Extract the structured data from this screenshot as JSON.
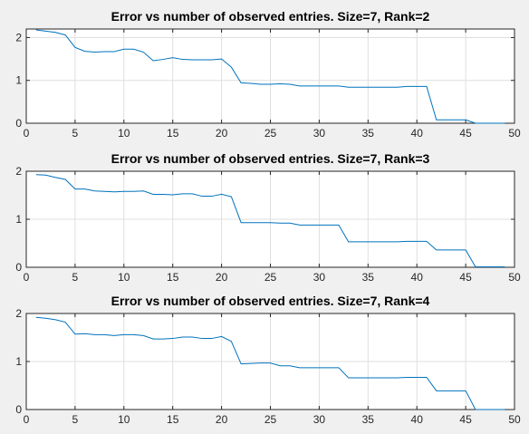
{
  "chart_data": [
    {
      "type": "line",
      "title": "Error vs number of observed entries. Size=7,  Rank=2",
      "xlabel": "",
      "ylabel": "",
      "xlim": [
        0,
        50
      ],
      "ylim": [
        0,
        2.2
      ],
      "xticks": [
        0,
        5,
        10,
        15,
        20,
        25,
        30,
        35,
        40,
        45,
        50
      ],
      "yticks": [
        0,
        1,
        2
      ],
      "grid": true,
      "color": "#0072bd",
      "series": [
        {
          "x": [
            1,
            2,
            3,
            4,
            5,
            6,
            7,
            8,
            9,
            10,
            11,
            12,
            13,
            14,
            15,
            16,
            17,
            18,
            19,
            20,
            21,
            22,
            23,
            24,
            25,
            26,
            27,
            28,
            29,
            30,
            31,
            32,
            33,
            34,
            35,
            36,
            37,
            38,
            39,
            40,
            41,
            42,
            43,
            44,
            45,
            46,
            47,
            48,
            49
          ],
          "y": [
            2.18,
            2.15,
            2.12,
            2.06,
            1.77,
            1.68,
            1.66,
            1.67,
            1.67,
            1.73,
            1.73,
            1.66,
            1.46,
            1.49,
            1.53,
            1.49,
            1.48,
            1.48,
            1.48,
            1.5,
            1.31,
            0.94,
            0.93,
            0.91,
            0.91,
            0.92,
            0.91,
            0.87,
            0.87,
            0.87,
            0.87,
            0.87,
            0.84,
            0.84,
            0.84,
            0.84,
            0.84,
            0.84,
            0.86,
            0.86,
            0.86,
            0.08,
            0.08,
            0.08,
            0.08,
            0.0,
            0.0,
            0.0,
            0.0
          ]
        }
      ]
    },
    {
      "type": "line",
      "title": "Error vs number of observed entries. Size=7,  Rank=3",
      "xlabel": "",
      "ylabel": "",
      "xlim": [
        0,
        50
      ],
      "ylim": [
        0,
        2
      ],
      "xticks": [
        0,
        5,
        10,
        15,
        20,
        25,
        30,
        35,
        40,
        45,
        50
      ],
      "yticks": [
        0,
        1,
        2
      ],
      "grid": true,
      "color": "#0072bd",
      "series": [
        {
          "x": [
            1,
            2,
            3,
            4,
            5,
            6,
            7,
            8,
            9,
            10,
            11,
            12,
            13,
            14,
            15,
            16,
            17,
            18,
            19,
            20,
            21,
            22,
            23,
            24,
            25,
            26,
            27,
            28,
            29,
            30,
            31,
            32,
            33,
            34,
            35,
            36,
            37,
            38,
            39,
            40,
            41,
            42,
            43,
            44,
            45,
            46,
            47,
            48,
            49
          ],
          "y": [
            1.93,
            1.92,
            1.87,
            1.83,
            1.63,
            1.63,
            1.59,
            1.58,
            1.57,
            1.58,
            1.58,
            1.59,
            1.52,
            1.52,
            1.51,
            1.53,
            1.53,
            1.48,
            1.48,
            1.52,
            1.47,
            0.93,
            0.93,
            0.93,
            0.93,
            0.92,
            0.92,
            0.88,
            0.88,
            0.88,
            0.88,
            0.88,
            0.53,
            0.53,
            0.53,
            0.53,
            0.53,
            0.53,
            0.54,
            0.54,
            0.54,
            0.36,
            0.36,
            0.36,
            0.36,
            0.01,
            0.01,
            0.01,
            0.01
          ]
        }
      ]
    },
    {
      "type": "line",
      "title": "Error vs number of observed entries. Size=7,  Rank=4",
      "xlabel": "",
      "ylabel": "",
      "xlim": [
        0,
        50
      ],
      "ylim": [
        0,
        2
      ],
      "xticks": [
        0,
        5,
        10,
        15,
        20,
        25,
        30,
        35,
        40,
        45,
        50
      ],
      "yticks": [
        0,
        1,
        2
      ],
      "grid": true,
      "color": "#0072bd",
      "series": [
        {
          "x": [
            1,
            2,
            3,
            4,
            5,
            6,
            7,
            8,
            9,
            10,
            11,
            12,
            13,
            14,
            15,
            16,
            17,
            18,
            19,
            20,
            21,
            22,
            23,
            24,
            25,
            26,
            27,
            28,
            29,
            30,
            31,
            32,
            33,
            34,
            35,
            36,
            37,
            38,
            39,
            40,
            41,
            42,
            43,
            44,
            45,
            46,
            47,
            48,
            49
          ],
          "y": [
            1.92,
            1.9,
            1.87,
            1.82,
            1.57,
            1.58,
            1.56,
            1.56,
            1.54,
            1.56,
            1.56,
            1.54,
            1.47,
            1.47,
            1.48,
            1.51,
            1.51,
            1.48,
            1.48,
            1.52,
            1.42,
            0.95,
            0.96,
            0.97,
            0.97,
            0.91,
            0.91,
            0.87,
            0.87,
            0.87,
            0.87,
            0.87,
            0.66,
            0.66,
            0.66,
            0.66,
            0.66,
            0.66,
            0.67,
            0.67,
            0.67,
            0.39,
            0.39,
            0.39,
            0.39,
            0.0,
            0.0,
            0.0,
            0.0
          ]
        }
      ]
    }
  ]
}
